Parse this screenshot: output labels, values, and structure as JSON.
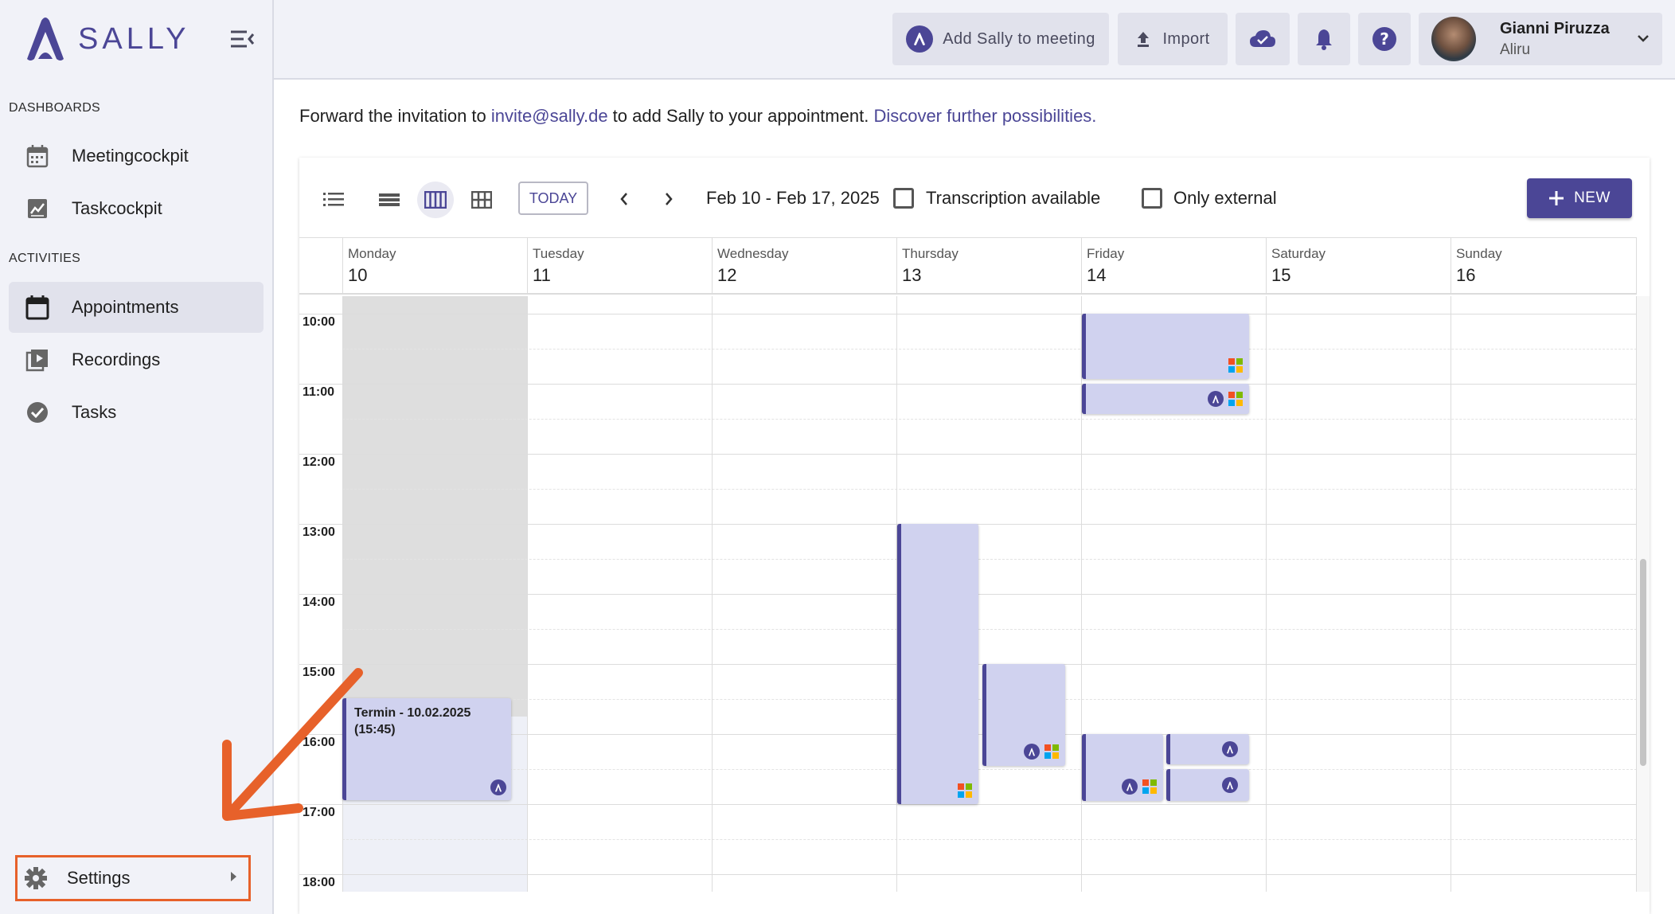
{
  "app": {
    "name": "SALLY"
  },
  "sidebar": {
    "sections": [
      {
        "label": "DASHBOARDS"
      },
      {
        "label": "ACTIVITIES"
      }
    ],
    "dashboards": [
      {
        "label": "Meetingcockpit",
        "icon": "calendar-icon"
      },
      {
        "label": "Taskcockpit",
        "icon": "chart-icon"
      }
    ],
    "activities": [
      {
        "label": "Appointments",
        "icon": "calendar-icon",
        "active": true
      },
      {
        "label": "Recordings",
        "icon": "video-library-icon"
      },
      {
        "label": "Tasks",
        "icon": "check-circle-icon"
      }
    ],
    "settings_label": "Settings"
  },
  "topbar": {
    "add_sally_label": "Add Sally to meeting",
    "import_label": "Import",
    "user": {
      "name": "Gianni Piruzza",
      "org": "Aliru"
    }
  },
  "main": {
    "forward_prefix": "Forward the invitation to ",
    "forward_email": "invite@sally.de",
    "forward_middle": " to add Sally to your appointment. ",
    "forward_link": "Discover further possibilities."
  },
  "calendar": {
    "today_label": "TODAY",
    "date_range": "Feb 10 - Feb 17, 2025",
    "transcription_label": "Transcription available",
    "external_label": "Only external",
    "new_label": "NEW",
    "days": [
      {
        "name": "Monday",
        "num": "10"
      },
      {
        "name": "Tuesday",
        "num": "11"
      },
      {
        "name": "Wednesday",
        "num": "12"
      },
      {
        "name": "Thursday",
        "num": "13"
      },
      {
        "name": "Friday",
        "num": "14"
      },
      {
        "name": "Saturday",
        "num": "15"
      },
      {
        "name": "Sunday",
        "num": "16"
      }
    ],
    "hours": [
      "10:00",
      "11:00",
      "12:00",
      "13:00",
      "14:00",
      "15:00",
      "16:00",
      "17:00",
      "18:00"
    ],
    "events": [
      {
        "title": "Termin - 10.02.2025 (15:45)",
        "day": "Monday"
      }
    ]
  },
  "colors": {
    "accent": "#4b4696",
    "event_bg": "#d0d2ef",
    "highlight": "#e7612a"
  }
}
